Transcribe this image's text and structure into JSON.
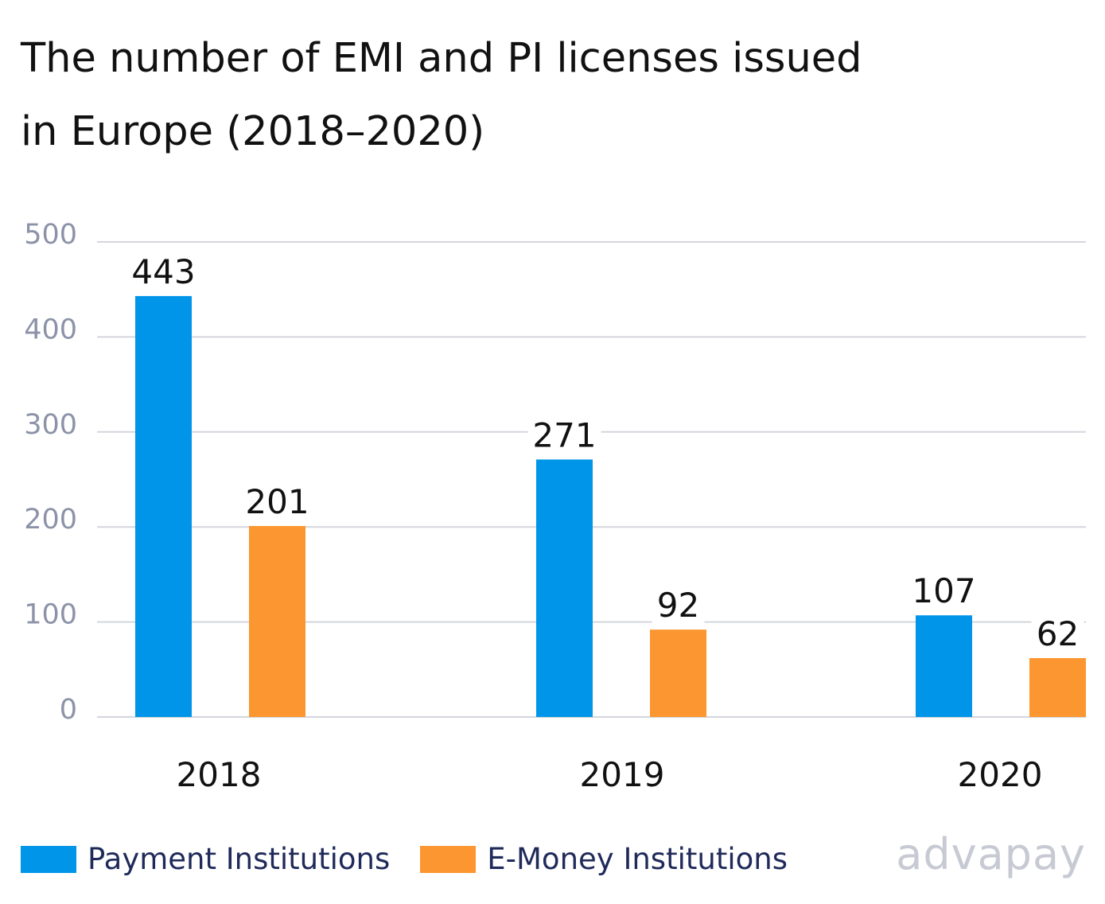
{
  "title_lines": [
    "The number of EMI and PI licenses issued",
    "in Europe (2018–2020)"
  ],
  "brand": "advapay",
  "colors": {
    "payment": "#0095e8",
    "emoney": "#fb9630",
    "grid": "#d4d6de",
    "tick": "#8c93a8",
    "label": "#111111"
  },
  "chart_data": {
    "type": "bar",
    "title": "The number of EMI and PI licenses issued in Europe (2018–2020)",
    "categories": [
      "2018",
      "2019",
      "2020"
    ],
    "series": [
      {
        "name": "Payment Institutions",
        "values": [
          443,
          271,
          107
        ]
      },
      {
        "name": "E-Money Institutions",
        "values": [
          201,
          92,
          62
        ]
      }
    ],
    "yticks": [
      0,
      100,
      200,
      300,
      400,
      500
    ],
    "ylim": [
      0,
      500
    ],
    "grid": true,
    "legend": "bottom-left",
    "xlabel": "",
    "ylabel": ""
  }
}
